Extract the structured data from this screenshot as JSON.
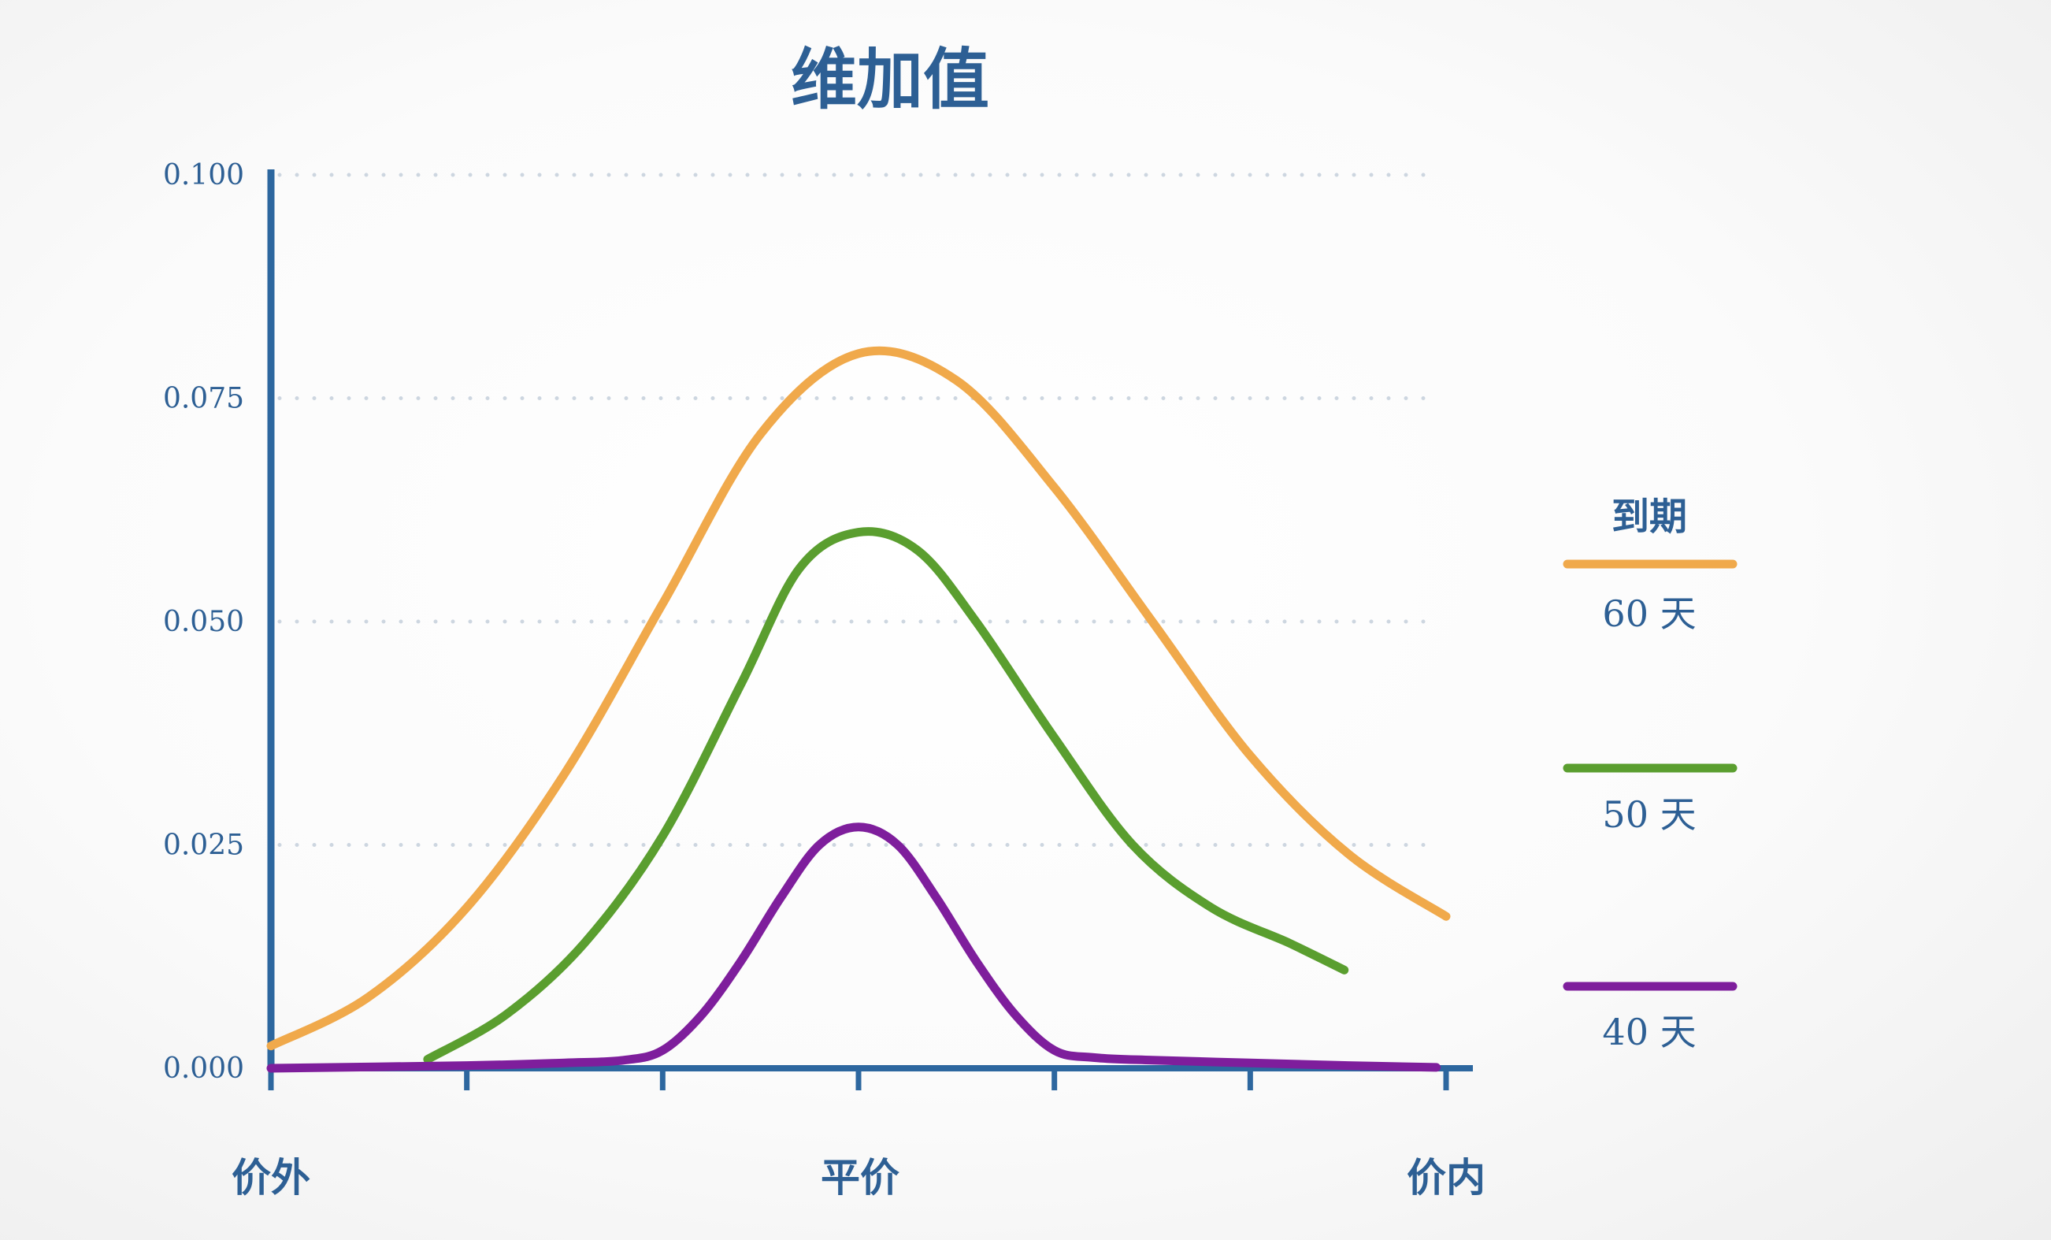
{
  "chart_data": {
    "type": "line",
    "title": "维加值",
    "xlabel": "",
    "ylabel": "",
    "categories": [
      "价外",
      "平价",
      "价内"
    ],
    "xlim": [
      -3,
      3
    ],
    "ylim": [
      0,
      0.1
    ],
    "yticks": [
      "0.000",
      "0.025",
      "0.050",
      "0.075",
      "0.100"
    ],
    "grid": true,
    "legend": {
      "title": "到期",
      "placement": "right"
    },
    "series": [
      {
        "name": "60 天",
        "color": "#f0a94b",
        "x": [
          -3.0,
          -2.5,
          -2.0,
          -1.5,
          -1.0,
          -0.5,
          0.0,
          0.5,
          1.0,
          1.5,
          2.0,
          2.5,
          3.0
        ],
        "y": [
          0.0025,
          0.008,
          0.018,
          0.033,
          0.052,
          0.071,
          0.08,
          0.077,
          0.065,
          0.05,
          0.035,
          0.024,
          0.017
        ]
      },
      {
        "name": "50 天",
        "color": "#5a9e2f",
        "x": [
          -2.2,
          -1.8,
          -1.4,
          -1.0,
          -0.6,
          -0.3,
          0.0,
          0.3,
          0.6,
          1.0,
          1.4,
          1.8,
          2.2,
          2.48
        ],
        "y": [
          0.001,
          0.006,
          0.014,
          0.026,
          0.043,
          0.056,
          0.06,
          0.058,
          0.05,
          0.037,
          0.025,
          0.018,
          0.014,
          0.011
        ]
      },
      {
        "name": "40 天",
        "color": "#7e1e9c",
        "x": [
          -3.0,
          -2.0,
          -1.5,
          -1.2,
          -1.0,
          -0.8,
          -0.6,
          -0.4,
          -0.2,
          0.0,
          0.2,
          0.4,
          0.6,
          0.8,
          1.0,
          1.2,
          1.5,
          2.0,
          2.5,
          2.95
        ],
        "y": [
          0.0,
          0.0003,
          0.0006,
          0.0009,
          0.002,
          0.006,
          0.012,
          0.019,
          0.025,
          0.027,
          0.025,
          0.019,
          0.012,
          0.006,
          0.002,
          0.0012,
          0.0009,
          0.0006,
          0.0003,
          0.0001
        ]
      }
    ]
  },
  "colors": {
    "axis": "#2d679f",
    "text": "#2d5f94",
    "grid": "#cdd6e0"
  }
}
